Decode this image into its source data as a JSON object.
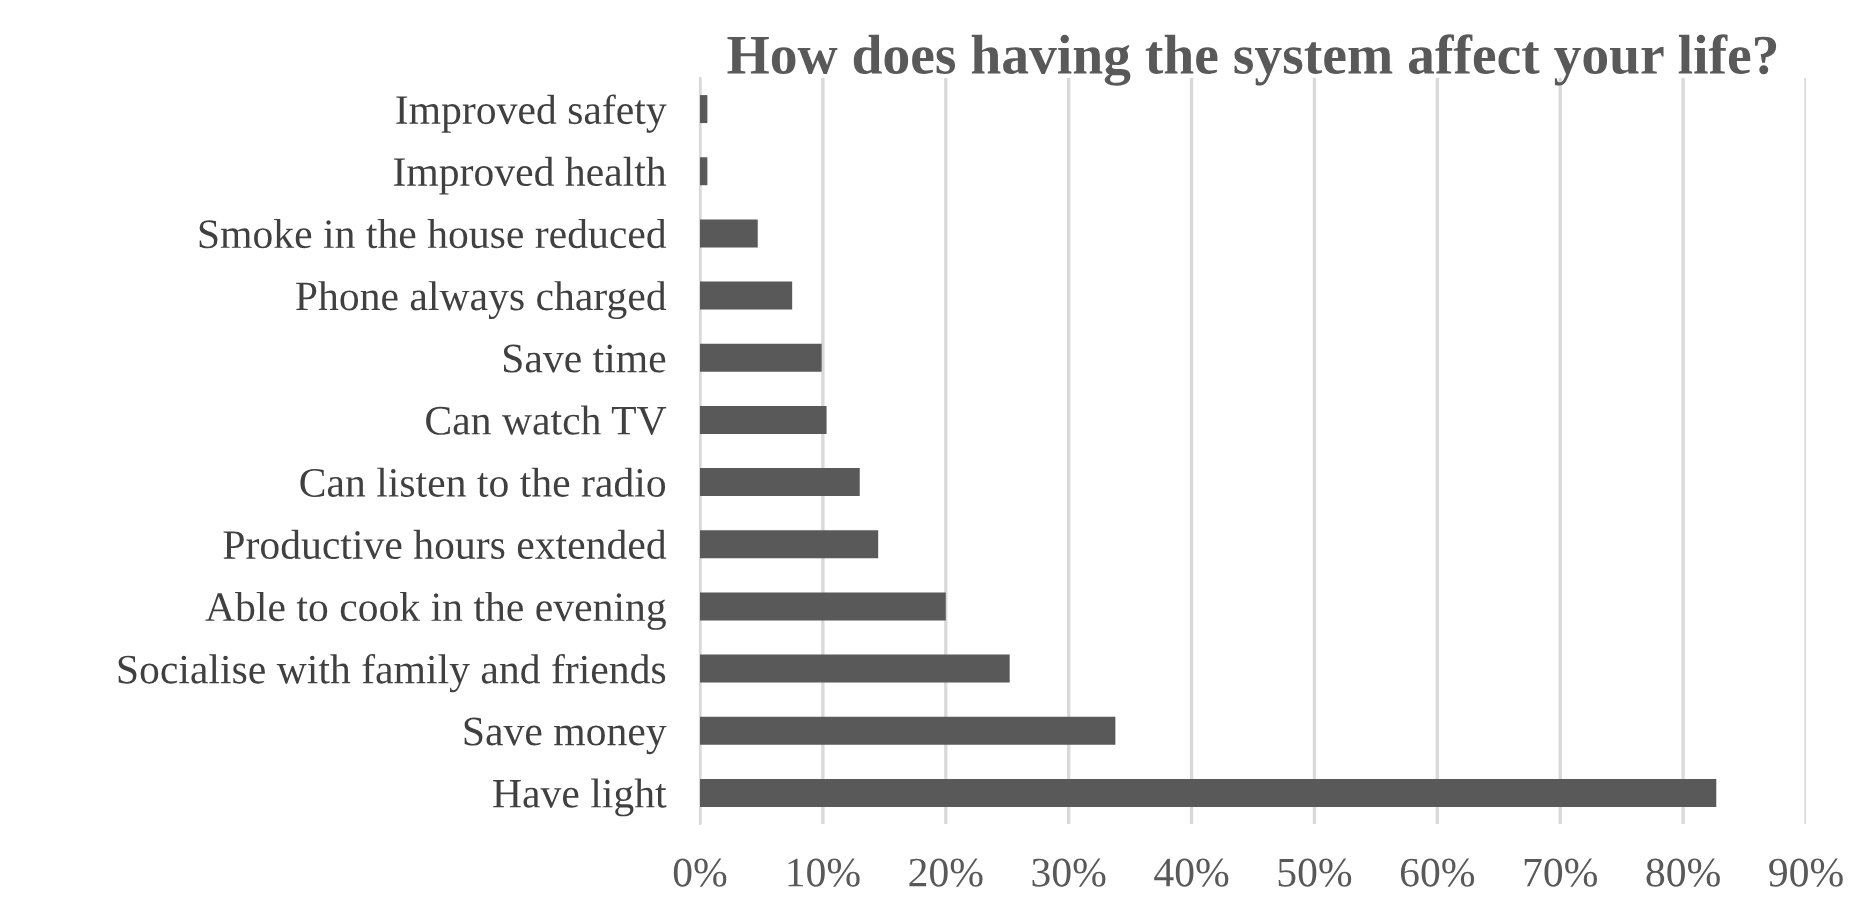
{
  "chart_data": {
    "type": "bar",
    "orientation": "horizontal",
    "title": "How does having the system affect your life?",
    "categories": [
      "Improved safety",
      "Improved health",
      "Smoke in the house reduced",
      "Phone always charged",
      "Save time",
      "Can watch TV",
      "Can listen to the radio",
      "Productive hours extended",
      "Able to cook in the evening",
      "Socialise with family and friends",
      "Save money",
      "Have light"
    ],
    "values": [
      0.6,
      0.6,
      4.7,
      7.5,
      9.9,
      10.3,
      13.0,
      14.5,
      20.0,
      25.2,
      33.8,
      82.7
    ],
    "color": "#595959",
    "xlim": [
      0,
      90
    ],
    "xticks": [
      {
        "value": 0,
        "label": "0%"
      },
      {
        "value": 10,
        "label": "10%"
      },
      {
        "value": 20,
        "label": "20%"
      },
      {
        "value": 30,
        "label": "30%"
      },
      {
        "value": 40,
        "label": "40%"
      },
      {
        "value": 50,
        "label": "50%"
      },
      {
        "value": 60,
        "label": "60%"
      },
      {
        "value": 70,
        "label": "70%"
      },
      {
        "value": 80,
        "label": "80%"
      },
      {
        "value": 90,
        "label": "90%"
      }
    ],
    "grid": "x",
    "legend": false
  }
}
